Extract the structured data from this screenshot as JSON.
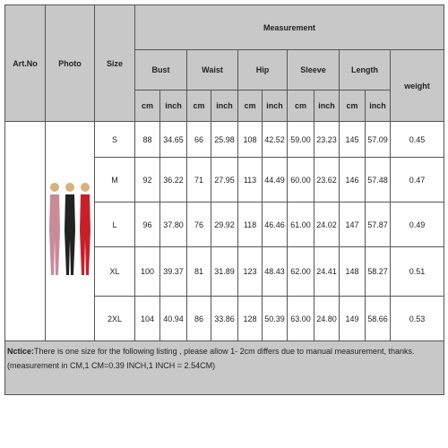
{
  "header": {
    "art_no": "Art.No",
    "photo": "Photo",
    "size": "Size",
    "measurement": "Measurement",
    "weight": "weight",
    "groups": [
      "Bust",
      "Waist",
      "Hip",
      "Sleeve",
      "Length"
    ],
    "units": [
      "cm",
      "inch",
      "cm",
      "inch",
      "cm",
      "inch",
      "cm",
      "inch",
      "cm",
      "inch"
    ]
  },
  "rows": [
    [
      "S",
      "88",
      "34.65",
      "66",
      "25.98",
      "108",
      "42.52",
      "59.00",
      "23.23",
      "145",
      "57.09",
      "0.45"
    ],
    [
      "M",
      "92",
      "36.22",
      "71",
      "27.95",
      "113",
      "44.49",
      "60.00",
      "23.62",
      "146",
      "57.48",
      "0.47"
    ],
    [
      "L",
      "96",
      "37.80",
      "76",
      "29.92",
      "118",
      "46.46",
      "61.00",
      "24.02",
      "147",
      "57.87",
      "0.49"
    ],
    [
      "XL",
      "100",
      "39.37",
      "81",
      "31.89",
      "123",
      "48.43",
      "62.00",
      "24.41",
      "148",
      "58.27",
      "0.51"
    ],
    [
      "2XL",
      "104",
      "40.94",
      "86",
      "33.86",
      "128",
      "50.39",
      "63.00",
      "24.80",
      "149",
      "58.66",
      "0.53"
    ]
  ],
  "notice": {
    "label": "Nctice:",
    "text": "There is one size for the following listing , please allow 1- 2cm differs due to manual measurement, thanks. (measurement in CM,1 CM=0.39 INCH,1 INCH = 2.54CM)"
  }
}
